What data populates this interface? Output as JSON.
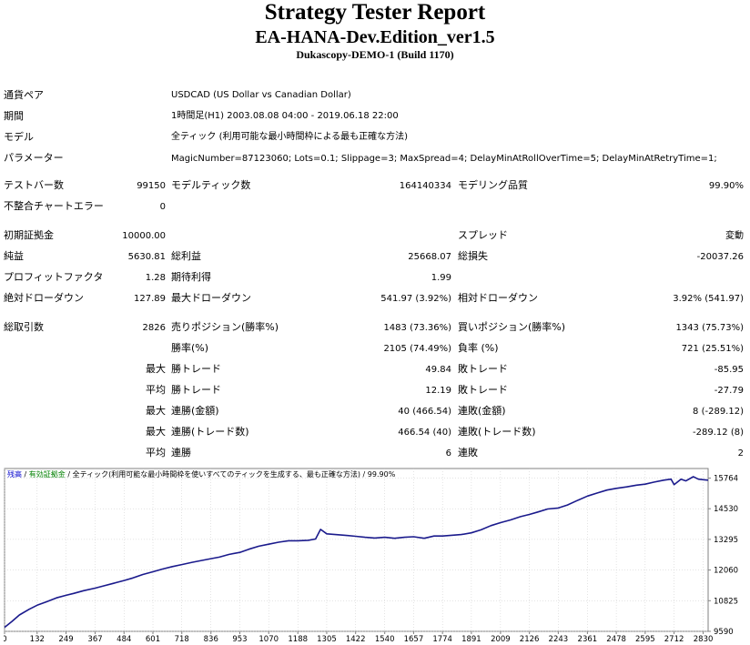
{
  "header": {
    "title": "Strategy Tester Report",
    "ea_name": "EA-HANA-Dev.Edition_ver1.5",
    "server": "Dukascopy-DEMO-1 (Build 1170)"
  },
  "settings": {
    "symbol_label": "通貨ペア",
    "symbol_value": "USDCAD (US Dollar vs Canadian Dollar)",
    "period_label": "期間",
    "period_value": "1時間足(H1) 2003.08.08 04:00 - 2019.06.18 22:00",
    "model_label": "モデル",
    "model_value": "全ティック (利用可能な最小時間枠による最も正確な方法)",
    "params_label": "パラメーター",
    "params_value": "MagicNumber=87123060; Lots=0.1; Slippage=3; MaxSpread=4; DelayMinAtRollOverTime=5; DelayMinAtRetryTime=1;"
  },
  "bars": {
    "bars_label": "テストバー数",
    "bars_value": "99150",
    "ticks_label": "モデルティック数",
    "ticks_value": "164140334",
    "quality_label": "モデリング品質",
    "quality_value": "99.90%",
    "errors_label": "不整合チャートエラー",
    "errors_value": "0"
  },
  "results": {
    "deposit_label": "初期証拠金",
    "deposit_value": "10000.00",
    "spread_label": "スプレッド",
    "spread_value": "変動",
    "net_label": "純益",
    "net_value": "5630.81",
    "gross_profit_label": "総利益",
    "gross_profit_value": "25668.07",
    "gross_loss_label": "総損失",
    "gross_loss_value": "-20037.26",
    "pf_label": "プロフィットファクタ",
    "pf_value": "1.28",
    "expected_label": "期待利得",
    "expected_value": "1.99",
    "abs_dd_label": "絶対ドローダウン",
    "abs_dd_value": "127.89",
    "max_dd_label": "最大ドローダウン",
    "max_dd_value": "541.97 (3.92%)",
    "rel_dd_label": "相対ドローダウン",
    "rel_dd_value": "3.92% (541.97)"
  },
  "trades": {
    "total_label": "総取引数",
    "total_value": "2826",
    "short_label": "売りポジション(勝率%)",
    "short_value": "1483 (73.36%)",
    "long_label": "買いポジション(勝率%)",
    "long_value": "1343 (75.73%)",
    "win_label": "勝率(%)",
    "win_value": "2105 (74.49%)",
    "loss_label": "負率 (%)",
    "loss_value": "721 (25.51%)",
    "largest_prefix": "最大",
    "average_prefix": "平均",
    "win_trade_label": "勝トレード",
    "loss_trade_label": "敗トレード",
    "largest_win_value": "49.84",
    "largest_loss_value": "-85.95",
    "avg_win_value": "12.19",
    "avg_loss_value": "-27.79",
    "cons_wins_money_label": "連勝(金額)",
    "cons_losses_money_label": "連敗(金額)",
    "cons_wins_money_value": "40 (466.54)",
    "cons_losses_money_value": "8 (-289.12)",
    "cons_wins_count_label": "連勝(トレード数)",
    "cons_losses_count_label": "連敗(トレード数)",
    "cons_wins_count_value": "466.54 (40)",
    "cons_losses_count_value": "-289.12 (8)",
    "avg_cons_wins_label": "連勝",
    "avg_cons_losses_label": "連敗",
    "avg_cons_wins_value": "6",
    "avg_cons_losses_value": "2"
  },
  "legend": {
    "balance": "残高",
    "sep1": "/",
    "equity": "有効証拠金",
    "sep2": "/",
    "model_note": "全ティック(利用可能な最小時間枠を使いすべてのティックを生成する、最も正確な方法)",
    "sep3": "/",
    "quality": "99.90%"
  },
  "colors": {
    "balance_line": "#1a1a8c",
    "balance_label": "#0000cc",
    "equity_label": "#008000",
    "grid": "#c8c8c8",
    "frame": "#808080"
  },
  "chart_data": {
    "type": "line",
    "title": "",
    "xlabel": "",
    "ylabel": "",
    "x_ticks": [
      0,
      132,
      249,
      367,
      484,
      601,
      718,
      836,
      953,
      1070,
      1188,
      1305,
      1422,
      1540,
      1657,
      1774,
      1891,
      2009,
      2126,
      2243,
      2361,
      2478,
      2595,
      2712,
      2830
    ],
    "y_ticks": [
      9590,
      10825,
      12060,
      13295,
      14530,
      15764
    ],
    "xlim": [
      0,
      2850
    ],
    "ylim": [
      9590,
      16150
    ],
    "grid": true,
    "series": [
      {
        "x": [
          0,
          30,
          60,
          100,
          132,
          170,
          210,
          249,
          280,
          320,
          367,
          400,
          440,
          484,
          520,
          560,
          601,
          640,
          680,
          718,
          760,
          800,
          836,
          870,
          910,
          953,
          990,
          1030,
          1070,
          1110,
          1150,
          1188,
          1230,
          1260,
          1280,
          1305,
          1340,
          1380,
          1422,
          1460,
          1500,
          1540,
          1580,
          1620,
          1657,
          1700,
          1740,
          1774,
          1810,
          1850,
          1891,
          1930,
          1970,
          2009,
          2050,
          2090,
          2126,
          2160,
          2200,
          2243,
          2280,
          2320,
          2361,
          2400,
          2440,
          2478,
          2520,
          2560,
          2595,
          2630,
          2670,
          2700,
          2712,
          2725,
          2740,
          2760,
          2790,
          2810,
          2830,
          2850
        ],
        "y": [
          9750,
          9990,
          10250,
          10480,
          10640,
          10780,
          10940,
          11040,
          11120,
          11230,
          11330,
          11420,
          11520,
          11640,
          11740,
          11880,
          11990,
          12100,
          12200,
          12280,
          12370,
          12450,
          12520,
          12580,
          12690,
          12770,
          12900,
          13020,
          13100,
          13180,
          13240,
          13240,
          13260,
          13310,
          13700,
          13520,
          13490,
          13460,
          13420,
          13380,
          13350,
          13380,
          13340,
          13380,
          13400,
          13340,
          13430,
          13430,
          13460,
          13490,
          13560,
          13680,
          13850,
          13970,
          14080,
          14210,
          14300,
          14400,
          14520,
          14560,
          14680,
          14860,
          15040,
          15160,
          15280,
          15350,
          15410,
          15480,
          15520,
          15600,
          15680,
          15720,
          15500,
          15600,
          15720,
          15650,
          15820,
          15720,
          15700,
          15680
        ]
      }
    ]
  }
}
